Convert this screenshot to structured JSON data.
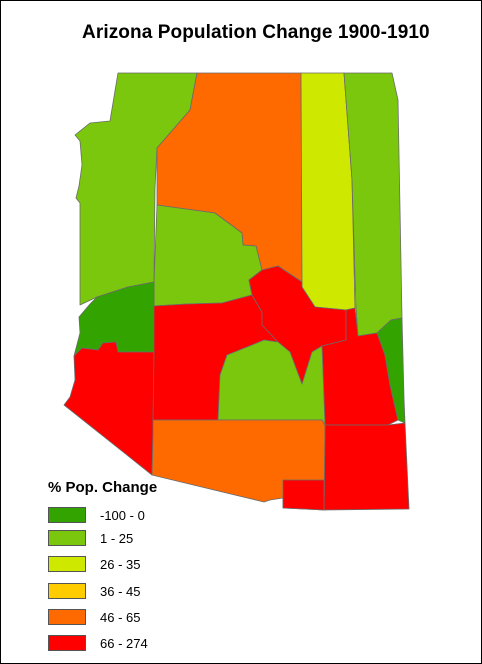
{
  "title": "Arizona Population Change 1900-1910",
  "legend": {
    "title": "% Pop. Change",
    "items": [
      {
        "label": "-100 - 0",
        "color": "#33a300"
      },
      {
        "label": "1 - 25",
        "color": "#7ac70d"
      },
      {
        "label": "26 - 35",
        "color": "#cfe800"
      },
      {
        "label": "36 - 45",
        "color": "#ffcc00"
      },
      {
        "label": "46 - 65",
        "color": "#ff6a00"
      },
      {
        "label": "66 - 274",
        "color": "#ff0000"
      }
    ]
  },
  "counties": [
    {
      "class": "1 - 25"
    },
    {
      "class": "46 - 65"
    },
    {
      "class": "26 - 35"
    },
    {
      "class": "1 - 25"
    },
    {
      "class": "1 - 25"
    },
    {
      "class": "-100 - 0"
    },
    {
      "class": "66 - 274"
    },
    {
      "class": "66 - 274"
    },
    {
      "class": "66 - 274"
    },
    {
      "class": "66 - 274"
    },
    {
      "class": "1 - 25"
    },
    {
      "class": "66 - 274"
    },
    {
      "class": "-100 - 0"
    },
    {
      "class": "46 - 65"
    },
    {
      "class": "66 - 274"
    }
  ]
}
